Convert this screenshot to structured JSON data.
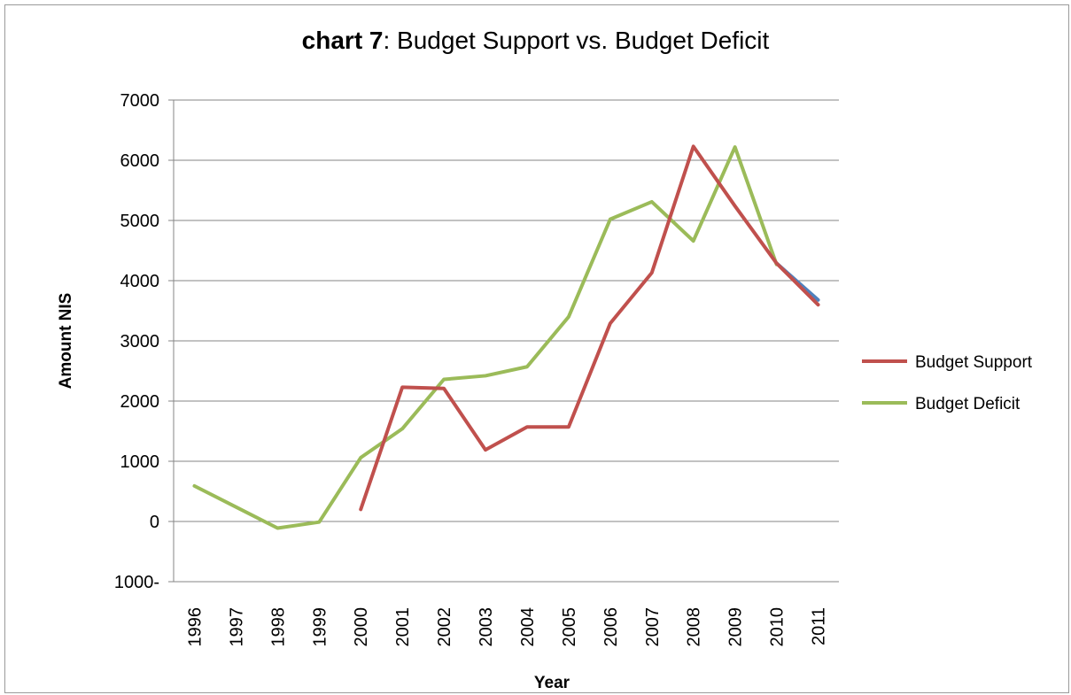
{
  "chart_data": {
    "type": "line",
    "title_bold": "chart 7",
    "title_rest": ": Budget Support  vs. Budget Deficit",
    "xlabel": "Year",
    "ylabel": "Amount NIS",
    "ylim": [
      -1000,
      7000
    ],
    "yticks": [
      7000,
      6000,
      5000,
      4000,
      3000,
      2000,
      1000,
      0,
      -1000
    ],
    "ytick_labels": [
      "7000",
      "6000",
      "5000",
      "4000",
      "3000",
      "2000",
      "1000",
      "0",
      "1000-"
    ],
    "categories": [
      "1996",
      "1997",
      "1998",
      "1999",
      "2000",
      "2001",
      "2002",
      "2003",
      "2004",
      "2005",
      "2006",
      "2007",
      "2008",
      "2009",
      "2010",
      "2011"
    ],
    "grid": true,
    "legend_position": "right",
    "series": [
      {
        "name": "Budget Support",
        "color": "#c0504d",
        "values": [
          null,
          null,
          null,
          null,
          200,
          2230,
          2210,
          1190,
          1570,
          1570,
          3290,
          4130,
          6230,
          5240,
          4290,
          3600
        ]
      },
      {
        "name": "Budget Deficit",
        "color": "#9bbb59",
        "values": [
          590,
          240,
          -110,
          -10,
          1060,
          1540,
          2360,
          2420,
          2570,
          3400,
          5020,
          5310,
          4660,
          6220,
          4270,
          null
        ]
      }
    ],
    "annotation_segment": {
      "color": "#4f81bd",
      "from": {
        "x": "2010",
        "y": 4290
      },
      "to": {
        "x": "2011",
        "y": 3680
      }
    }
  }
}
